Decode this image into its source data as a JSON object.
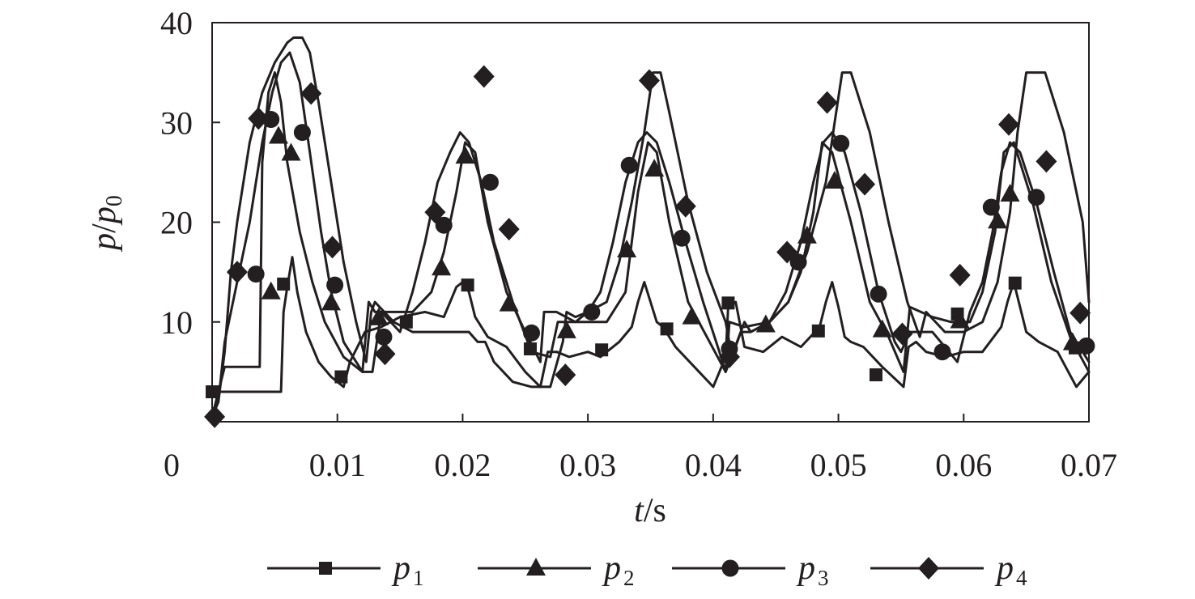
{
  "chart_data": {
    "type": "line",
    "title": "",
    "xlabel": {
      "var": "t",
      "unit": "/s"
    },
    "ylabel": {
      "var": "p",
      "sep": "/",
      "var2": "p",
      "sub": "0"
    },
    "xlim": [
      0,
      0.07
    ],
    "ylim": [
      0,
      40
    ],
    "xticks": [
      "0",
      "0.01",
      "0.02",
      "0.03",
      "0.04",
      "0.05",
      "0.06",
      "0.07"
    ],
    "yticks": [
      "10",
      "20",
      "30",
      "40"
    ],
    "grid": false,
    "legend_position": "bottom",
    "line_color": "#231f20",
    "series": [
      {
        "name": "p",
        "sub": "1",
        "marker": "square",
        "x": [
          0,
          0.0027,
          0.0028,
          0.003,
          0.0035,
          0.004,
          0.0045,
          0.005,
          0.0055,
          0.0057,
          0.006,
          0.0064,
          0.0068,
          0.0075,
          0.0085,
          0.0095,
          0.0105,
          0.011,
          0.0122,
          0.0135,
          0.015,
          0.017,
          0.0185,
          0.019,
          0.0195,
          0.02,
          0.0205,
          0.021,
          0.022,
          0.0235,
          0.025,
          0.0262,
          0.0268,
          0.0275,
          0.0285,
          0.03,
          0.031,
          0.0325,
          0.0335,
          0.034,
          0.0345,
          0.035,
          0.0355,
          0.036,
          0.037,
          0.0385,
          0.04,
          0.041,
          0.0412,
          0.0418,
          0.0425,
          0.044,
          0.0455,
          0.047,
          0.0485,
          0.049,
          0.0495,
          0.05,
          0.0505,
          0.051,
          0.052,
          0.0535,
          0.0552,
          0.0556,
          0.0562,
          0.057,
          0.0585,
          0.06,
          0.0615,
          0.063,
          0.0635,
          0.064,
          0.0645,
          0.065,
          0.066,
          0.0675,
          0.069,
          0.07
        ],
        "y": [
          3,
          3,
          3,
          3,
          3,
          3,
          3,
          3,
          3,
          11,
          13.5,
          16.5,
          13,
          9,
          6,
          4.5,
          3.5,
          6,
          9,
          9.5,
          10.5,
          11,
          10.5,
          12,
          13.5,
          14,
          13,
          10.5,
          8.5,
          7.5,
          5,
          3.5,
          7,
          7,
          6.5,
          7,
          6.5,
          8,
          9.5,
          12,
          14,
          12,
          10,
          9.5,
          7.5,
          5.5,
          3.5,
          6.5,
          11.5,
          12,
          7.5,
          7,
          8.5,
          7.5,
          9.5,
          12,
          14,
          11.5,
          8.5,
          8,
          7.5,
          5.5,
          3.5,
          7.5,
          8,
          7,
          6.5,
          7,
          7,
          9.5,
          12,
          14,
          11.5,
          9,
          8,
          7,
          3.5,
          5
        ],
        "markers": [
          [
            0,
            3
          ],
          [
            0.0057,
            13.8
          ],
          [
            0.0103,
            4.5
          ],
          [
            0.0155,
            10
          ],
          [
            0.0204,
            13.7
          ],
          [
            0.0254,
            7.3
          ],
          [
            0.0311,
            7.2
          ],
          [
            0.0363,
            9.3
          ],
          [
            0.0412,
            11.9
          ],
          [
            0.0484,
            9.1
          ],
          [
            0.053,
            4.7
          ],
          [
            0.0595,
            10.8
          ],
          [
            0.0641,
            13.9
          ],
          [
            0.0689,
            7.4
          ]
        ]
      },
      {
        "name": "p",
        "sub": "2",
        "marker": "triangle",
        "x": [
          0,
          0.001,
          0.0018,
          0.003,
          0.0038,
          0.004,
          0.0045,
          0.005,
          0.0055,
          0.006,
          0.007,
          0.008,
          0.009,
          0.0105,
          0.012,
          0.0125,
          0.013,
          0.0145,
          0.016,
          0.0175,
          0.0185,
          0.0195,
          0.0202,
          0.021,
          0.022,
          0.0235,
          0.025,
          0.0262,
          0.0265,
          0.0275,
          0.029,
          0.03,
          0.0315,
          0.033,
          0.034,
          0.0348,
          0.0355,
          0.0365,
          0.038,
          0.0395,
          0.041,
          0.0413,
          0.0425,
          0.0445,
          0.046,
          0.047,
          0.048,
          0.0487,
          0.0495,
          0.051,
          0.0525,
          0.054,
          0.0552,
          0.0557,
          0.0575,
          0.059,
          0.0605,
          0.0615,
          0.0625,
          0.0632,
          0.064,
          0.0655,
          0.067,
          0.0685,
          0.07
        ],
        "y": [
          0.5,
          5.5,
          5.5,
          5.5,
          5.5,
          26,
          33,
          35,
          32,
          26,
          19,
          14,
          10,
          6.5,
          5,
          12,
          11,
          11,
          11,
          13,
          17,
          23,
          28,
          27,
          20,
          13,
          9,
          6,
          11,
          11,
          10,
          10,
          10,
          13,
          23,
          28,
          27,
          20,
          12,
          8.5,
          5,
          10,
          9.5,
          10,
          12,
          15,
          21,
          28,
          27,
          20,
          12,
          8.5,
          5,
          11.5,
          10.5,
          10,
          10,
          13,
          19,
          27,
          28,
          22,
          14,
          8.5,
          5
        ],
        "markers": [
          [
            0.0047,
            13
          ],
          [
            0.0053,
            28.6
          ],
          [
            0.0063,
            26.9
          ],
          [
            0.0095,
            11.9
          ],
          [
            0.0133,
            10.4
          ],
          [
            0.0183,
            15.4
          ],
          [
            0.0202,
            26.6
          ],
          [
            0.0237,
            11.8
          ],
          [
            0.0283,
            9.1
          ],
          [
            0.0331,
            17.2
          ],
          [
            0.0353,
            25.3
          ],
          [
            0.0383,
            10.5
          ],
          [
            0.0442,
            9.7
          ],
          [
            0.0475,
            18.6
          ],
          [
            0.0497,
            24.1
          ],
          [
            0.0535,
            9.2
          ],
          [
            0.0597,
            10.1
          ],
          [
            0.0627,
            20.1
          ],
          [
            0.0637,
            22.8
          ],
          [
            0.0687,
            7.9
          ]
        ]
      },
      {
        "name": "p",
        "sub": "3",
        "marker": "circle",
        "x": [
          0,
          0.0005,
          0.001,
          0.002,
          0.003,
          0.004,
          0.0048,
          0.0055,
          0.0062,
          0.007,
          0.0078,
          0.0087,
          0.0095,
          0.0105,
          0.012,
          0.0128,
          0.0135,
          0.015,
          0.016,
          0.017,
          0.018,
          0.019,
          0.0198,
          0.0205,
          0.0215,
          0.0225,
          0.024,
          0.0255,
          0.027,
          0.0276,
          0.029,
          0.03,
          0.031,
          0.032,
          0.033,
          0.034,
          0.0347,
          0.0355,
          0.0365,
          0.0378,
          0.0392,
          0.0405,
          0.041,
          0.0413,
          0.0422,
          0.043,
          0.0445,
          0.0458,
          0.047,
          0.048,
          0.0488,
          0.0495,
          0.0505,
          0.0518,
          0.0532,
          0.0545,
          0.055,
          0.0557,
          0.0575,
          0.0595,
          0.0605,
          0.0615,
          0.0623,
          0.063,
          0.0637,
          0.0645,
          0.0658,
          0.0672,
          0.0685,
          0.07
        ],
        "y": [
          0.5,
          2,
          8,
          14,
          20,
          28,
          33,
          36,
          37,
          34,
          27,
          19,
          13,
          8,
          5,
          5,
          11,
          9,
          13,
          18,
          24,
          27,
          29,
          28,
          24,
          18,
          12,
          7,
          6.5,
          10,
          10,
          11,
          13,
          18,
          24,
          28,
          29,
          28,
          24,
          18,
          12,
          7,
          5,
          6,
          9,
          9,
          10,
          13,
          18,
          24,
          28,
          29,
          27,
          21,
          13,
          8,
          7,
          9,
          9,
          6,
          11,
          14,
          19,
          25,
          28,
          27,
          22,
          15,
          9,
          6
        ],
        "markers": [
          [
            0.0035,
            14.8
          ],
          [
            0.0047,
            30.3
          ],
          [
            0.0072,
            29
          ],
          [
            0.0098,
            13.7
          ],
          [
            0.0137,
            8.5
          ],
          [
            0.0185,
            19.7
          ],
          [
            0.0222,
            24
          ],
          [
            0.0255,
            8.9
          ],
          [
            0.0303,
            11
          ],
          [
            0.0333,
            25.7
          ],
          [
            0.0375,
            18.4
          ],
          [
            0.0413,
            7.3
          ],
          [
            0.0468,
            16
          ],
          [
            0.0502,
            27.9
          ],
          [
            0.0532,
            12.8
          ],
          [
            0.0583,
            7
          ],
          [
            0.0622,
            21.5
          ],
          [
            0.0658,
            22.5
          ],
          [
            0.0698,
            7.6
          ]
        ]
      },
      {
        "name": "p",
        "sub": "4",
        "marker": "diamond",
        "x": [
          0,
          0.0005,
          0.001,
          0.0015,
          0.002,
          0.003,
          0.004,
          0.005,
          0.006,
          0.0065,
          0.0072,
          0.0078,
          0.0085,
          0.0095,
          0.0105,
          0.0115,
          0.0123,
          0.0127,
          0.013,
          0.0145,
          0.016,
          0.018,
          0.0195,
          0.0205,
          0.0212,
          0.0218,
          0.0225,
          0.024,
          0.0255,
          0.027,
          0.028,
          0.0283,
          0.029,
          0.03,
          0.0315,
          0.0325,
          0.0335,
          0.0345,
          0.0352,
          0.0358,
          0.0365,
          0.038,
          0.0395,
          0.041,
          0.0415,
          0.0425,
          0.043,
          0.0445,
          0.046,
          0.0475,
          0.049,
          0.0497,
          0.0503,
          0.051,
          0.0525,
          0.054,
          0.0555,
          0.0565,
          0.057,
          0.0585,
          0.06,
          0.0615,
          0.0627,
          0.0637,
          0.0643,
          0.065,
          0.0665,
          0.068,
          0.0695,
          0.07
        ],
        "y": [
          0.5,
          2,
          7,
          15,
          20,
          28,
          33,
          36,
          38,
          38.5,
          38.5,
          37,
          32,
          24,
          16,
          10,
          6,
          11,
          12,
          10,
          9,
          9,
          9,
          9,
          8,
          8,
          6,
          4,
          3.5,
          3.5,
          8,
          11,
          10.5,
          11,
          12,
          16,
          22,
          29,
          35,
          35,
          31,
          22,
          15,
          10,
          6.5,
          10,
          9,
          10,
          12,
          17,
          24,
          30,
          35,
          35,
          29,
          20,
          12,
          8.5,
          11,
          9,
          9,
          10,
          14,
          21,
          29,
          35,
          35,
          29,
          20,
          12
        ],
        "markers": [
          [
            0.0002,
            0.5
          ],
          [
            0.002,
            15
          ],
          [
            0.0037,
            30.4
          ],
          [
            0.0079,
            32.9
          ],
          [
            0.0096,
            17.5
          ],
          [
            0.0138,
            6.8
          ],
          [
            0.0178,
            21
          ],
          [
            0.0217,
            34.6
          ],
          [
            0.0237,
            19.3
          ],
          [
            0.0282,
            4.7
          ],
          [
            0.0349,
            34.2
          ],
          [
            0.0378,
            21.6
          ],
          [
            0.0413,
            6.5
          ],
          [
            0.0459,
            17
          ],
          [
            0.0491,
            32
          ],
          [
            0.0521,
            23.8
          ],
          [
            0.0551,
            8.8
          ],
          [
            0.0597,
            14.7
          ],
          [
            0.0636,
            29.8
          ],
          [
            0.0666,
            26.1
          ],
          [
            0.0693,
            10.9
          ]
        ]
      }
    ]
  }
}
